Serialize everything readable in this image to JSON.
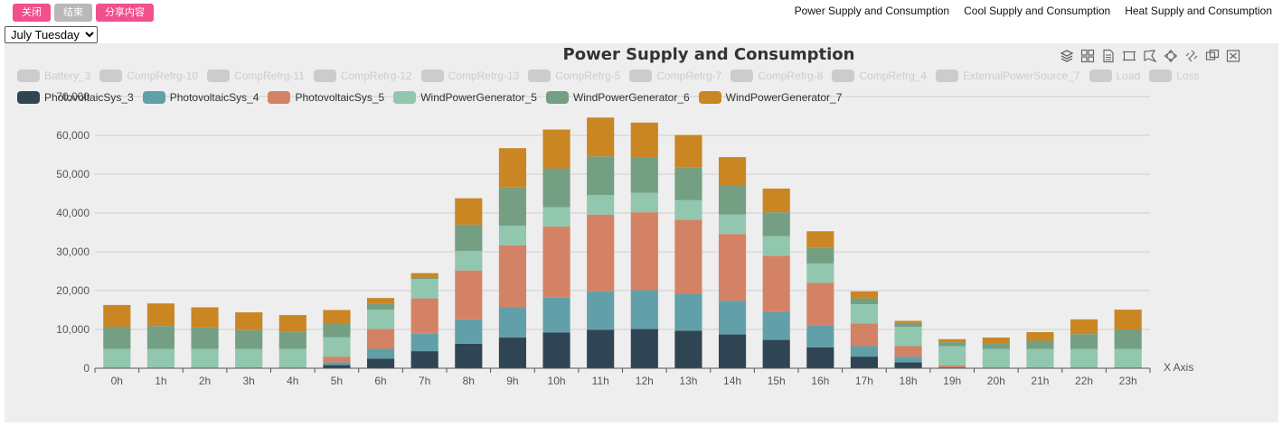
{
  "header": {
    "buttons": [
      {
        "label": "关闭",
        "color": "#f0508c"
      },
      {
        "label": "结束",
        "color": "#b8b8b8"
      },
      {
        "label": "分享内容",
        "color": "#f0508c"
      }
    ],
    "links": [
      "Power Supply and Consumption",
      "Cool Supply and Consumption",
      "Heat Supply and Consumption"
    ],
    "day_select": {
      "selected": "July Tuesday"
    }
  },
  "toolbox": {
    "icons": [
      "stack-icon",
      "tiled-icon",
      "data-view-icon",
      "zoom-icon",
      "lasso-icon",
      "restore-icon",
      "refresh-icon",
      "brush-keep-icon",
      "clear-icon"
    ]
  },
  "chart_data": {
    "type": "bar",
    "stacked": true,
    "title": "Power Supply and Consumption",
    "xlabel": "X Axis",
    "ylabel": "",
    "ylim": [
      0,
      70000
    ],
    "yticks": [
      "0",
      "10,000",
      "20,000",
      "30,000",
      "40,000",
      "50,000",
      "60,000",
      "70,000"
    ],
    "grid": true,
    "legend_position": "top-left",
    "categories": [
      "0h",
      "1h",
      "2h",
      "3h",
      "4h",
      "5h",
      "6h",
      "7h",
      "8h",
      "9h",
      "10h",
      "11h",
      "12h",
      "13h",
      "14h",
      "15h",
      "16h",
      "17h",
      "18h",
      "19h",
      "20h",
      "21h",
      "22h",
      "23h"
    ],
    "legend_inactive": [
      {
        "name": "Battery_3"
      },
      {
        "name": "CompRefrg-10"
      },
      {
        "name": "CompRefrg-11"
      },
      {
        "name": "CompRefrg-12"
      },
      {
        "name": "CompRefrg-13"
      },
      {
        "name": "CompRefrg-5"
      },
      {
        "name": "CompRefrg-7"
      },
      {
        "name": "CompRefrg-8"
      },
      {
        "name": "CompRefrg_4"
      },
      {
        "name": "ExternalPowerSource_7"
      },
      {
        "name": "Load"
      },
      {
        "name": "Loss"
      }
    ],
    "inactive_color": "#cccccc",
    "series": [
      {
        "name": "PhotovoltaicSys_3",
        "color": "#2f4554",
        "values": [
          0,
          0,
          0,
          0,
          0,
          800,
          2500,
          4400,
          6300,
          7900,
          9200,
          9900,
          10100,
          9700,
          8700,
          7300,
          5400,
          3000,
          1500,
          200,
          0,
          0,
          0,
          0
        ]
      },
      {
        "name": "PhotovoltaicSys_4",
        "color": "#61a0a8",
        "values": [
          0,
          0,
          0,
          0,
          0,
          700,
          2500,
          4500,
          6300,
          7900,
          9000,
          9900,
          10000,
          9500,
          8700,
          7200,
          5600,
          2700,
          1500,
          100,
          0,
          0,
          0,
          0
        ]
      },
      {
        "name": "PhotovoltaicSys_5",
        "color": "#d48265",
        "values": [
          0,
          0,
          0,
          0,
          0,
          1500,
          5100,
          9100,
          12600,
          15900,
          18300,
          19800,
          20100,
          19100,
          17200,
          14500,
          11000,
          5800,
          2700,
          400,
          0,
          0,
          0,
          0
        ]
      },
      {
        "name": "WindPowerGenerator_5",
        "color": "#91c7ae",
        "values": [
          5000,
          5000,
          5000,
          5000,
          5000,
          5000,
          5000,
          5000,
          5000,
          5000,
          5000,
          5000,
          5000,
          5000,
          5000,
          5000,
          5000,
          5000,
          5000,
          5000,
          5000,
          5000,
          5000,
          5000
        ]
      },
      {
        "name": "WindPowerGenerator_6",
        "color": "#749f83",
        "values": [
          5700,
          5900,
          5500,
          4800,
          4500,
          3500,
          1500,
          500,
          6800,
          10000,
          10000,
          10000,
          9000,
          8500,
          7500,
          6200,
          4000,
          1500,
          1000,
          1000,
          1500,
          2100,
          3800,
          5000
        ]
      },
      {
        "name": "WindPowerGenerator_7",
        "color": "#ca8622",
        "values": [
          5600,
          5800,
          5200,
          4600,
          4200,
          3500,
          1500,
          1000,
          6800,
          10000,
          10000,
          10000,
          9100,
          8300,
          7300,
          6100,
          4300,
          1800,
          500,
          800,
          1400,
          2200,
          3800,
          5100
        ]
      }
    ]
  }
}
